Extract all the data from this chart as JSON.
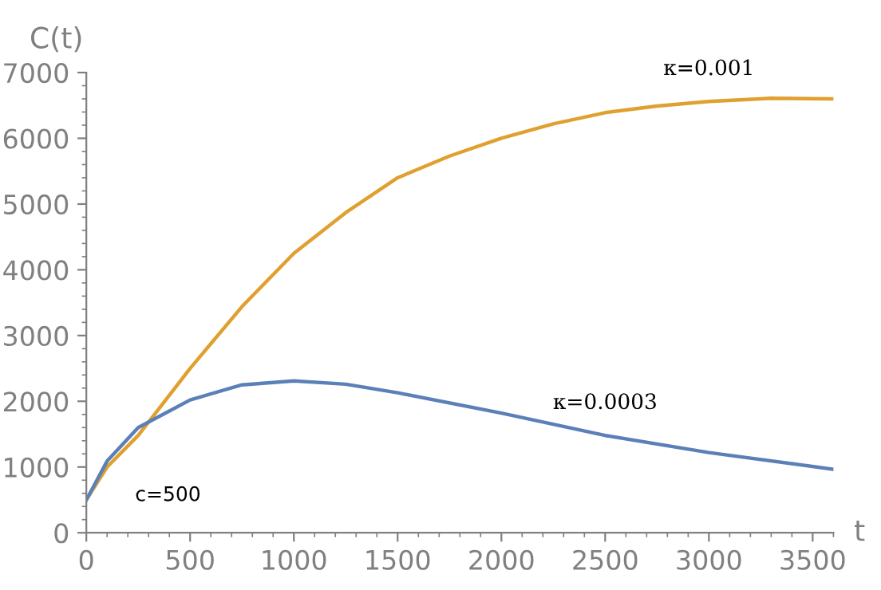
{
  "chart_data": {
    "type": "line",
    "xlabel": "t",
    "ylabel": "C(t)",
    "xlim": [
      0,
      3600
    ],
    "ylim": [
      0,
      7000
    ],
    "xticks": [
      0,
      500,
      1000,
      1500,
      2000,
      2500,
      3000,
      3500
    ],
    "yticks": [
      0,
      1000,
      2000,
      3000,
      4000,
      5000,
      6000,
      7000
    ],
    "grid": false,
    "legend": false,
    "marker": "none",
    "line_style": "solid",
    "annotations": [
      {
        "text": "c=500",
        "x": 0,
        "y": 500
      }
    ],
    "series": [
      {
        "name": "κ=0.001",
        "color": "#e0a030",
        "x": [
          0,
          100,
          250,
          500,
          750,
          1000,
          1250,
          1500,
          1750,
          2000,
          2250,
          2500,
          2750,
          3000,
          3300,
          3600
        ],
        "values": [
          500,
          1000,
          1480,
          2500,
          3440,
          4250,
          4870,
          5400,
          5730,
          6000,
          6220,
          6390,
          6490,
          6560,
          6610,
          6600
        ]
      },
      {
        "name": "κ=0.0003",
        "color": "#5b80b8",
        "x": [
          0,
          100,
          250,
          500,
          750,
          1000,
          1250,
          1500,
          2000,
          2500,
          3000,
          3600
        ],
        "values": [
          500,
          1090,
          1600,
          2020,
          2250,
          2310,
          2260,
          2130,
          1820,
          1480,
          1220,
          965
        ]
      }
    ]
  }
}
